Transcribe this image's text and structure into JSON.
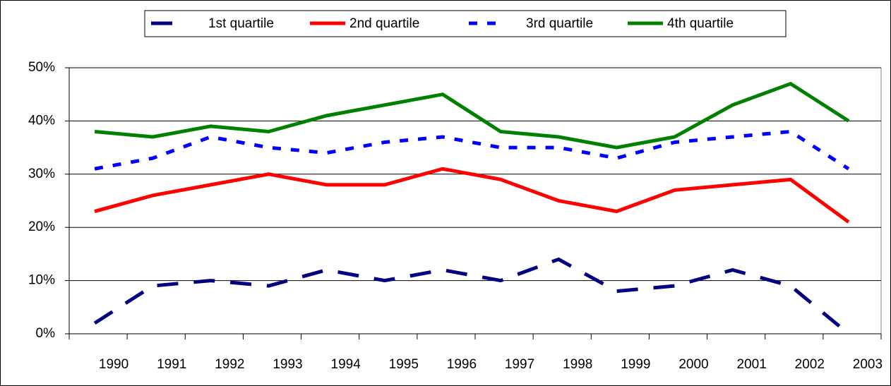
{
  "chart_data": {
    "type": "line",
    "categories": [
      "1990",
      "1991",
      "1992",
      "1993",
      "1994",
      "1995",
      "1996",
      "1997",
      "1998",
      "1999",
      "2000",
      "2001",
      "2002",
      "2003"
    ],
    "series": [
      {
        "name": "1st quartile",
        "color": "#000080",
        "line_style": "dashed",
        "values": [
          2,
          9,
          10,
          9,
          12,
          10,
          12,
          10,
          14,
          8,
          9,
          12,
          9,
          0
        ]
      },
      {
        "name": "2nd quartile",
        "color": "#ff0000",
        "line_style": "solid",
        "values": [
          23,
          26,
          28,
          30,
          28,
          28,
          31,
          29,
          25,
          23,
          27,
          28,
          29,
          21
        ]
      },
      {
        "name": "3rd quartile",
        "color": "#0000ff",
        "line_style": "dotted",
        "values": [
          31,
          33,
          37,
          35,
          34,
          36,
          37,
          35,
          35,
          33,
          36,
          37,
          38,
          31
        ]
      },
      {
        "name": "4th quartile",
        "color": "#008000",
        "line_style": "solid",
        "values": [
          38,
          37,
          39,
          38,
          41,
          43,
          45,
          38,
          37,
          35,
          37,
          43,
          47,
          40
        ]
      }
    ],
    "ylim": [
      0,
      50
    ],
    "yticks": [
      {
        "value": 0,
        "label": "0%"
      },
      {
        "value": 10,
        "label": "10%"
      },
      {
        "value": 20,
        "label": "20%"
      },
      {
        "value": 30,
        "label": "30%"
      },
      {
        "value": 40,
        "label": "40%"
      },
      {
        "value": 50,
        "label": "50%"
      }
    ],
    "grid": true,
    "legend": "top"
  }
}
